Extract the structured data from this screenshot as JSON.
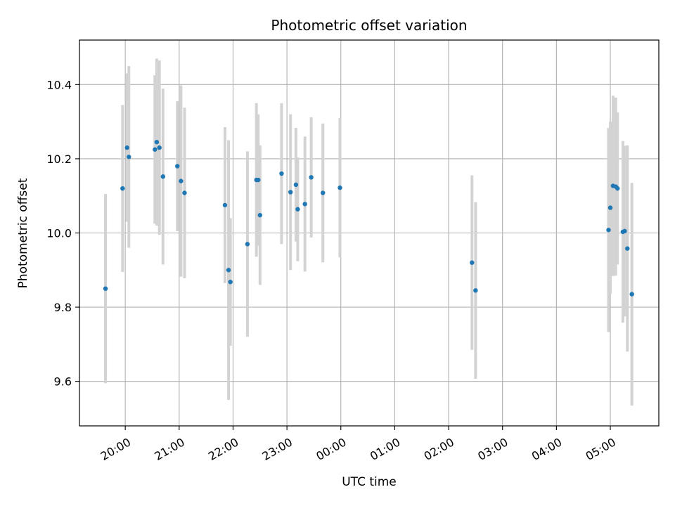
{
  "chart_data": {
    "type": "scatter",
    "title": "Photometric offset variation",
    "xlabel": "UTC time",
    "ylabel": "Photometric offset",
    "x_unit": "UTC clock time (HH:MM), run spans midnight",
    "x_range": [
      "19:09",
      "05:54"
    ],
    "ylim": [
      9.48,
      10.52
    ],
    "grid": true,
    "x_ticks": [
      "20:00",
      "21:00",
      "22:00",
      "23:00",
      "00:00",
      "01:00",
      "02:00",
      "03:00",
      "04:00",
      "05:00"
    ],
    "y_ticks": [
      9.6,
      9.8,
      10.0,
      10.2,
      10.4
    ],
    "y_tick_labels": [
      "9.6",
      "9.8",
      "10.0",
      "10.2",
      "10.4"
    ],
    "colors": {
      "point": "#1f77b4",
      "errorbar": "#d3d3d3",
      "grid": "#b0b0b0"
    },
    "points": [
      {
        "x": "19:38",
        "y": 9.85,
        "err": 0.255
      },
      {
        "x": "19:57",
        "y": 10.12,
        "err": 0.225
      },
      {
        "x": "20:02",
        "y": 10.23,
        "err": 0.2
      },
      {
        "x": "20:04",
        "y": 10.205,
        "err": 0.245
      },
      {
        "x": "20:33",
        "y": 10.225,
        "err": 0.2
      },
      {
        "x": "20:35",
        "y": 10.245,
        "err": 0.225
      },
      {
        "x": "20:38",
        "y": 10.23,
        "err": 0.235
      },
      {
        "x": "20:42",
        "y": 10.152,
        "err": 0.237
      },
      {
        "x": "20:58",
        "y": 10.18,
        "err": 0.175
      },
      {
        "x": "21:02",
        "y": 10.14,
        "err": 0.258
      },
      {
        "x": "21:06",
        "y": 10.108,
        "err": 0.23
      },
      {
        "x": "21:51",
        "y": 10.075,
        "err": 0.21
      },
      {
        "x": "21:55",
        "y": 9.9,
        "err": 0.35
      },
      {
        "x": "21:57",
        "y": 9.868,
        "err": 0.172
      },
      {
        "x": "22:16",
        "y": 9.97,
        "err": 0.25
      },
      {
        "x": "22:26",
        "y": 10.143,
        "err": 0.207
      },
      {
        "x": "22:28",
        "y": 10.143,
        "err": 0.177
      },
      {
        "x": "22:30",
        "y": 10.048,
        "err": 0.188
      },
      {
        "x": "22:54",
        "y": 10.16,
        "err": 0.19
      },
      {
        "x": "23:04",
        "y": 10.11,
        "err": 0.21
      },
      {
        "x": "23:10",
        "y": 10.13,
        "err": 0.153
      },
      {
        "x": "23:12",
        "y": 10.064,
        "err": 0.14
      },
      {
        "x": "23:20",
        "y": 10.078,
        "err": 0.182
      },
      {
        "x": "23:27",
        "y": 10.15,
        "err": 0.162
      },
      {
        "x": "23:40",
        "y": 10.108,
        "err": 0.187
      },
      {
        "x": "23:59",
        "y": 10.122,
        "err": 0.188
      },
      {
        "x": "02:26",
        "y": 9.92,
        "err": 0.235
      },
      {
        "x": "02:30",
        "y": 9.845,
        "err": 0.238
      },
      {
        "x": "04:58",
        "y": 10.008,
        "err": 0.275
      },
      {
        "x": "05:00",
        "y": 10.068,
        "err": 0.232
      },
      {
        "x": "05:03",
        "y": 10.127,
        "err": 0.243
      },
      {
        "x": "05:06",
        "y": 10.125,
        "err": 0.24
      },
      {
        "x": "05:08",
        "y": 10.12,
        "err": 0.205
      },
      {
        "x": "05:14",
        "y": 10.003,
        "err": 0.245
      },
      {
        "x": "05:16",
        "y": 10.005,
        "err": 0.23
      },
      {
        "x": "05:19",
        "y": 9.958,
        "err": 0.278
      },
      {
        "x": "05:24",
        "y": 9.835,
        "err": 0.3
      }
    ]
  }
}
